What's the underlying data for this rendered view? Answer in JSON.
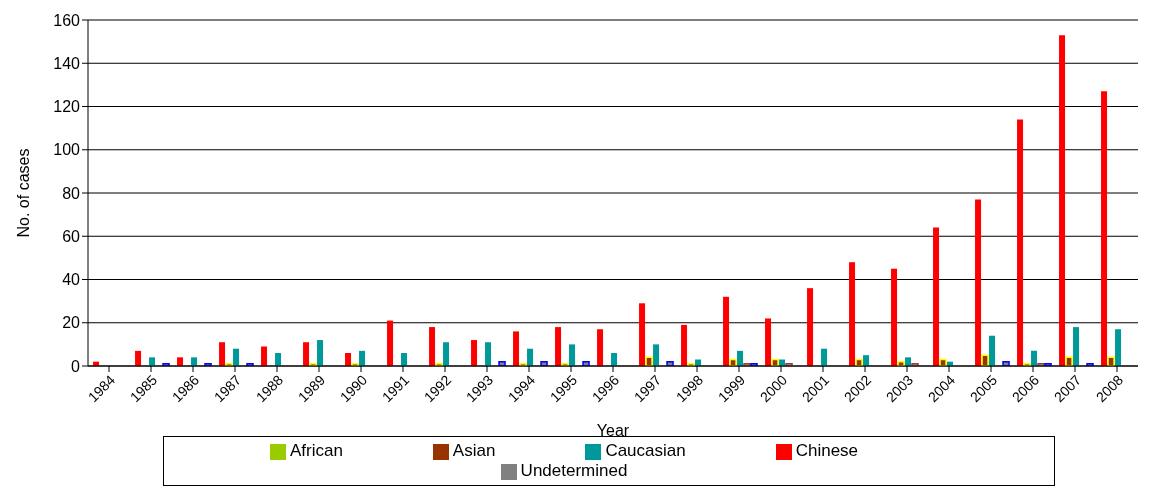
{
  "chart_data": {
    "type": "bar",
    "xlabel": "Year",
    "ylabel": "No. of cases",
    "categories": [
      "1984",
      "1985",
      "1986",
      "1987",
      "1988",
      "1989",
      "1990",
      "1991",
      "1992",
      "1993",
      "1994",
      "1995",
      "1996",
      "1997",
      "1998",
      "1999",
      "2000",
      "2001",
      "2002",
      "2003",
      "2004",
      "2005",
      "2006",
      "2007",
      "2008"
    ],
    "series": [
      {
        "name": "Chinese",
        "color": "#ff0000",
        "values": [
          2,
          7,
          4,
          11,
          9,
          11,
          6,
          21,
          18,
          12,
          16,
          18,
          17,
          29,
          19,
          32,
          22,
          36,
          48,
          45,
          64,
          77,
          114,
          153,
          127
        ]
      },
      {
        "name": "Asian",
        "color": "#993300",
        "values": [
          0,
          0,
          0,
          1,
          0,
          1,
          1,
          0,
          1,
          0,
          1,
          1,
          0,
          4,
          1,
          3,
          3,
          0,
          3,
          2,
          3,
          5,
          1,
          4,
          4
        ]
      },
      {
        "name": "Caucasian",
        "color": "#009999",
        "values": [
          0,
          4,
          4,
          8,
          6,
          12,
          7,
          6,
          11,
          11,
          8,
          10,
          6,
          10,
          3,
          7,
          3,
          8,
          5,
          4,
          2,
          14,
          7,
          18,
          17
        ]
      },
      {
        "name": "African",
        "color": "#99cc00",
        "values": [
          0,
          0,
          0,
          0,
          0,
          0,
          0,
          0,
          0,
          0,
          0,
          0,
          0,
          0,
          0,
          1,
          1,
          0,
          0,
          1,
          0,
          0,
          1,
          0,
          0
        ]
      },
      {
        "name": "Undetermined",
        "color": "#808080",
        "values": [
          0,
          1,
          1,
          1,
          0,
          0,
          0,
          0,
          0,
          2,
          2,
          2,
          0,
          2,
          0,
          1,
          0,
          0,
          0,
          0,
          0,
          2,
          1,
          1,
          0
        ]
      }
    ],
    "ylim": [
      0,
      160
    ],
    "yticks": [
      0,
      20,
      40,
      60,
      80,
      100,
      120,
      140,
      160
    ],
    "grid": "y",
    "legend": "bottom"
  }
}
